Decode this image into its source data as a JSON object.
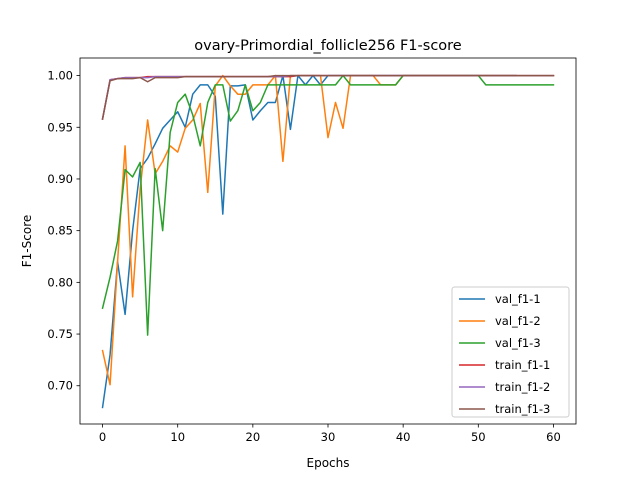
{
  "chart_data": {
    "type": "line",
    "title": "ovary-Primordial_follicle256 F1-score",
    "xlabel": "Epochs",
    "ylabel": "F1-Score",
    "xlim": [
      -3,
      63
    ],
    "ylim": [
      0.663,
      1.017
    ],
    "xticks": [
      0,
      10,
      20,
      30,
      40,
      50,
      60
    ],
    "yticks": [
      0.7,
      0.75,
      0.8,
      0.85,
      0.9,
      0.95,
      1.0
    ],
    "ytick_labels": [
      "0.70",
      "0.75",
      "0.80",
      "0.85",
      "0.90",
      "0.95",
      "1.00"
    ],
    "grid": false,
    "legend_position": "lower-right",
    "series": [
      {
        "name": "val_f1-1",
        "color": "#1f77b4",
        "x": [
          0,
          1,
          2,
          3,
          4,
          5,
          6,
          7,
          8,
          9,
          10,
          11,
          12,
          13,
          14,
          15,
          16,
          17,
          18,
          19,
          20,
          21,
          22,
          23,
          24,
          25,
          26,
          27,
          28,
          29,
          30,
          31,
          32,
          33,
          34,
          35,
          36,
          37,
          38,
          39,
          40,
          41,
          42,
          43,
          44,
          45,
          46,
          47,
          48,
          49,
          50,
          51,
          52,
          53,
          54,
          55
        ],
        "values": [
          0.679,
          0.73,
          0.82,
          0.769,
          0.85,
          0.91,
          0.92,
          0.934,
          0.949,
          0.957,
          0.965,
          0.95,
          0.982,
          0.991,
          0.991,
          0.98,
          0.866,
          0.99,
          0.99,
          0.991,
          0.957,
          0.966,
          0.974,
          0.974,
          1.0,
          0.948,
          1.0,
          0.991,
          1.0,
          0.991,
          1.0,
          1.0,
          1.0,
          1.0,
          1.0,
          1.0,
          1.0,
          1.0,
          1.0,
          1.0,
          1.0,
          1.0,
          1.0,
          1.0,
          1.0,
          1.0,
          1.0,
          1.0,
          1.0,
          1.0,
          1.0,
          1.0,
          1.0,
          1.0,
          1.0,
          1.0
        ]
      },
      {
        "name": "val_f1-2",
        "color": "#ff7f0e",
        "x": [
          0,
          1,
          2,
          3,
          4,
          5,
          6,
          7,
          8,
          9,
          10,
          11,
          12,
          13,
          14,
          15,
          16,
          17,
          18,
          19,
          20,
          21,
          22,
          23,
          24,
          25,
          26,
          27,
          28,
          29,
          30,
          31,
          32,
          33,
          34,
          35,
          36,
          37,
          38,
          39,
          40,
          41,
          42,
          43,
          44,
          45,
          46,
          47,
          48,
          49,
          50,
          51,
          52,
          53,
          54,
          55,
          56,
          57,
          58,
          59,
          60
        ],
        "values": [
          0.734,
          0.701,
          0.82,
          0.932,
          0.786,
          0.89,
          0.957,
          0.905,
          0.917,
          0.932,
          0.926,
          0.949,
          0.957,
          0.973,
          0.887,
          0.99,
          1.0,
          0.99,
          0.982,
          0.982,
          0.991,
          0.991,
          0.991,
          1.0,
          0.917,
          1.0,
          1.0,
          1.0,
          1.0,
          1.0,
          0.94,
          0.974,
          0.949,
          1.0,
          1.0,
          1.0,
          1.0,
          0.991,
          0.991,
          0.991,
          1.0,
          1.0,
          1.0,
          1.0,
          1.0,
          1.0,
          1.0,
          1.0,
          1.0,
          1.0,
          1.0,
          1.0,
          1.0,
          1.0,
          1.0,
          1.0,
          1.0,
          1.0,
          1.0,
          1.0,
          1.0
        ]
      },
      {
        "name": "val_f1-3",
        "color": "#2ca02c",
        "x": [
          0,
          1,
          2,
          3,
          4,
          5,
          6,
          7,
          8,
          9,
          10,
          11,
          12,
          13,
          14,
          15,
          16,
          17,
          18,
          19,
          20,
          21,
          22,
          23,
          24,
          25,
          26,
          27,
          28,
          29,
          30,
          31,
          32,
          33,
          34,
          35,
          36,
          37,
          38,
          39,
          40,
          41,
          42,
          43,
          44,
          45,
          46,
          47,
          48,
          49,
          50,
          51,
          52,
          53,
          54,
          55,
          56,
          57,
          58,
          59,
          60
        ],
        "values": [
          0.775,
          0.805,
          0.84,
          0.909,
          0.902,
          0.916,
          0.749,
          0.91,
          0.85,
          0.945,
          0.974,
          0.982,
          0.962,
          0.932,
          0.974,
          0.991,
          0.991,
          0.956,
          0.966,
          0.991,
          0.966,
          0.974,
          0.991,
          0.991,
          0.991,
          0.991,
          0.991,
          0.991,
          0.991,
          0.991,
          0.991,
          0.991,
          1.0,
          0.991,
          0.991,
          0.991,
          0.991,
          0.991,
          0.991,
          0.991,
          1.0,
          1.0,
          1.0,
          1.0,
          1.0,
          1.0,
          1.0,
          1.0,
          1.0,
          1.0,
          1.0,
          0.991,
          0.991,
          0.991,
          0.991,
          0.991,
          0.991,
          0.991,
          0.991,
          0.991,
          0.991
        ]
      },
      {
        "name": "train_f1-1",
        "color": "#d62728",
        "x": [
          0,
          1,
          2,
          3,
          4,
          5,
          6,
          7,
          8,
          9,
          10,
          11,
          12,
          13,
          14,
          15,
          16,
          17,
          18,
          19,
          20,
          21,
          22,
          23,
          24,
          25,
          26,
          27,
          28,
          29,
          30,
          31,
          32,
          33,
          34,
          35,
          36,
          37,
          38,
          39,
          40,
          41,
          42,
          43,
          44,
          45,
          46,
          47,
          48,
          49,
          50,
          51,
          52,
          53,
          54,
          55
        ],
        "values": [
          0.958,
          0.996,
          0.997,
          0.998,
          0.998,
          0.998,
          0.999,
          0.999,
          0.999,
          0.999,
          0.999,
          0.999,
          0.999,
          0.999,
          0.999,
          0.999,
          0.999,
          0.999,
          0.999,
          0.999,
          0.999,
          0.999,
          0.999,
          0.999,
          0.999,
          0.999,
          1.0,
          1.0,
          1.0,
          1.0,
          1.0,
          1.0,
          1.0,
          1.0,
          1.0,
          1.0,
          1.0,
          1.0,
          1.0,
          1.0,
          1.0,
          1.0,
          1.0,
          1.0,
          1.0,
          1.0,
          1.0,
          1.0,
          1.0,
          1.0,
          1.0,
          1.0,
          1.0,
          1.0,
          1.0,
          1.0
        ]
      },
      {
        "name": "train_f1-2",
        "color": "#9467bd",
        "x": [
          0,
          1,
          2,
          3,
          4,
          5,
          6,
          7,
          8,
          9,
          10,
          11,
          12,
          13,
          14,
          15,
          16,
          17,
          18,
          19,
          20,
          21,
          22,
          23,
          24,
          25,
          26,
          27,
          28,
          29,
          30,
          31,
          32,
          33,
          34,
          35,
          36,
          37,
          38,
          39,
          40,
          41,
          42,
          43,
          44,
          45,
          46,
          47,
          48,
          49,
          50,
          51,
          52,
          53,
          54,
          55,
          56,
          57,
          58,
          59,
          60
        ],
        "values": [
          0.958,
          0.996,
          0.997,
          0.998,
          0.998,
          0.998,
          0.998,
          0.999,
          0.999,
          0.999,
          0.999,
          0.999,
          0.999,
          0.999,
          0.999,
          0.999,
          0.999,
          0.999,
          0.999,
          0.999,
          0.999,
          0.999,
          0.999,
          0.999,
          0.999,
          1.0,
          1.0,
          1.0,
          1.0,
          1.0,
          1.0,
          1.0,
          1.0,
          1.0,
          1.0,
          1.0,
          1.0,
          1.0,
          1.0,
          1.0,
          1.0,
          1.0,
          1.0,
          1.0,
          1.0,
          1.0,
          1.0,
          1.0,
          1.0,
          1.0,
          1.0,
          1.0,
          1.0,
          1.0,
          1.0,
          1.0,
          1.0,
          1.0,
          1.0,
          1.0,
          1.0
        ]
      },
      {
        "name": "train_f1-3",
        "color": "#8c564b",
        "x": [
          0,
          1,
          2,
          3,
          4,
          5,
          6,
          7,
          8,
          9,
          10,
          11,
          12,
          13,
          14,
          15,
          16,
          17,
          18,
          19,
          20,
          21,
          22,
          23,
          24,
          25,
          26,
          27,
          28,
          29,
          30,
          31,
          32,
          33,
          34,
          35,
          36,
          37,
          38,
          39,
          40,
          41,
          42,
          43,
          44,
          45,
          46,
          47,
          48,
          49,
          50,
          51,
          52,
          53,
          54,
          55,
          56,
          57,
          58,
          59,
          60
        ],
        "values": [
          0.958,
          0.995,
          0.997,
          0.997,
          0.997,
          0.998,
          0.994,
          0.998,
          0.998,
          0.998,
          0.998,
          0.999,
          0.999,
          0.999,
          0.999,
          0.999,
          0.999,
          0.999,
          0.999,
          0.999,
          0.999,
          0.999,
          0.999,
          1.0,
          1.0,
          1.0,
          1.0,
          1.0,
          1.0,
          1.0,
          1.0,
          1.0,
          1.0,
          1.0,
          1.0,
          1.0,
          1.0,
          1.0,
          1.0,
          1.0,
          1.0,
          1.0,
          1.0,
          1.0,
          1.0,
          1.0,
          1.0,
          1.0,
          1.0,
          1.0,
          1.0,
          1.0,
          1.0,
          1.0,
          1.0,
          1.0,
          1.0,
          1.0,
          1.0,
          1.0,
          1.0
        ]
      }
    ]
  }
}
